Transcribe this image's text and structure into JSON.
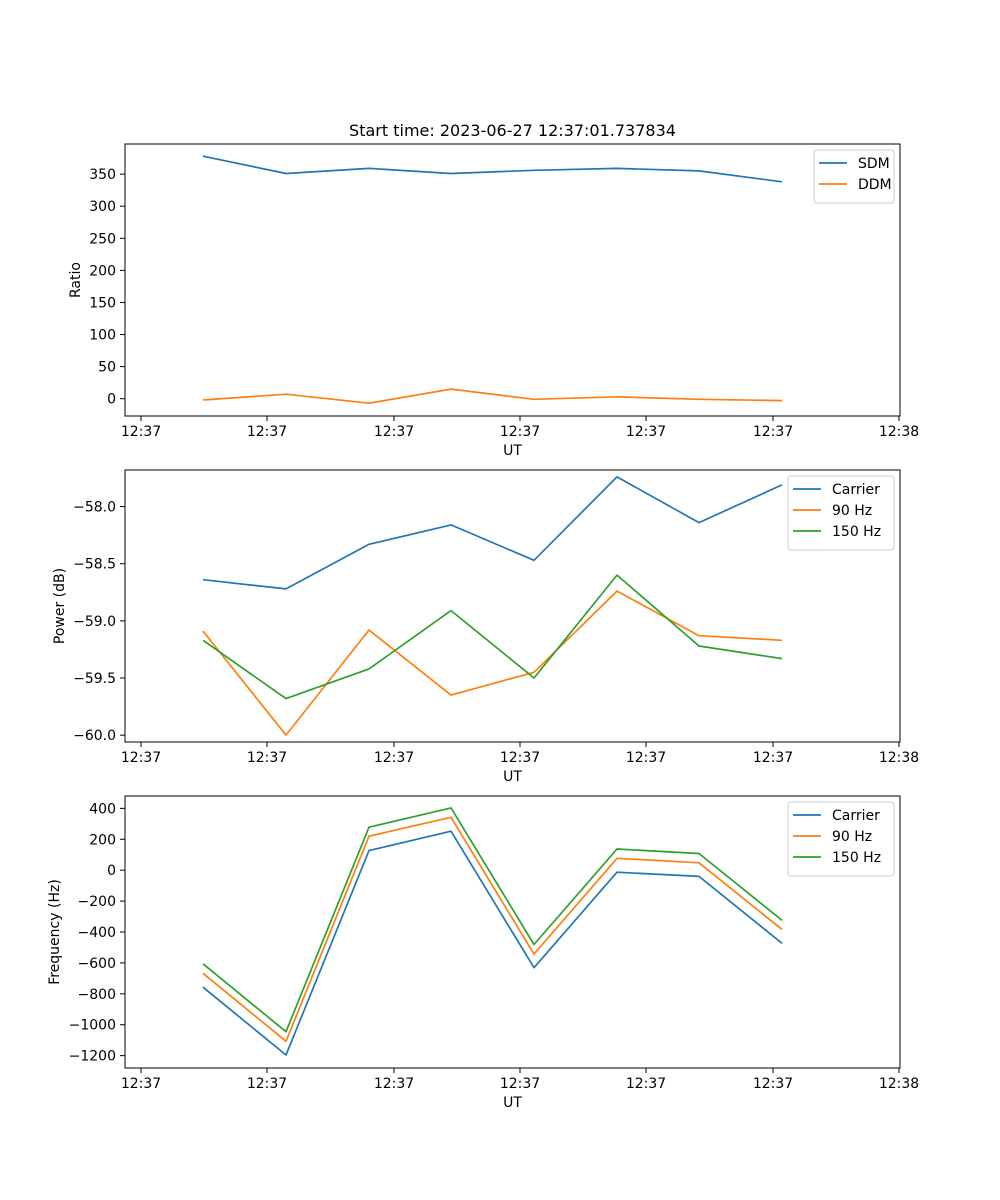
{
  "figure": {
    "title": "Start time: 2023-06-27 12:37:01.737834"
  },
  "chart_data": [
    {
      "type": "line",
      "title": "Start time: 2023-06-27 12:37:01.737834",
      "xlabel": "UT",
      "ylabel": "Ratio",
      "x_tick_labels": [
        "12:37",
        "12:37",
        "12:37",
        "12:37",
        "12:37",
        "12:37",
        "12:38"
      ],
      "y_ticks": [
        0,
        50,
        100,
        150,
        200,
        250,
        300,
        350
      ],
      "ylim": [
        -27,
        397
      ],
      "legend": "top-right",
      "grid": false,
      "series": [
        {
          "name": "SDM",
          "color": "#1f77b4",
          "values": [
            378,
            351,
            359,
            351,
            356,
            359,
            355,
            338
          ]
        },
        {
          "name": "DDM",
          "color": "#ff7f0e",
          "values": [
            -2,
            7,
            -7,
            15,
            -1,
            3,
            -1,
            -3
          ]
        }
      ]
    },
    {
      "type": "line",
      "title": "",
      "xlabel": "UT",
      "ylabel": "Power (dB)",
      "x_tick_labels": [
        "12:37",
        "12:37",
        "12:37",
        "12:37",
        "12:37",
        "12:37",
        "12:38"
      ],
      "y_ticks": [
        -60.0,
        -59.5,
        -59.0,
        -58.5,
        -58.0
      ],
      "y_tick_labels": [
        "−60.0",
        "−59.5",
        "−59.0",
        "−58.5",
        "−58.0"
      ],
      "ylim": [
        -60.06,
        -57.68
      ],
      "legend": "top-right",
      "grid": false,
      "series": [
        {
          "name": "Carrier",
          "color": "#1f77b4",
          "values": [
            -58.64,
            -58.72,
            -58.33,
            -58.16,
            -58.47,
            -57.74,
            -58.14,
            -57.81
          ]
        },
        {
          "name": "90 Hz",
          "color": "#ff7f0e",
          "values": [
            -59.09,
            -60.0,
            -59.08,
            -59.65,
            -59.45,
            -58.74,
            -59.13,
            -59.17
          ]
        },
        {
          "name": "150 Hz",
          "color": "#2ca02c",
          "values": [
            -59.17,
            -59.68,
            -59.42,
            -58.91,
            -59.5,
            -58.6,
            -59.22,
            -59.33
          ]
        }
      ]
    },
    {
      "type": "line",
      "title": "",
      "xlabel": "UT",
      "ylabel": "Frequency (Hz)",
      "x_tick_labels": [
        "12:37",
        "12:37",
        "12:37",
        "12:37",
        "12:37",
        "12:37",
        "12:38"
      ],
      "y_ticks": [
        -1200,
        -1000,
        -800,
        -600,
        -400,
        -200,
        0,
        200,
        400
      ],
      "y_tick_labels": [
        "−1200",
        "−1000",
        "−800",
        "−600",
        "−400",
        "−200",
        "0",
        "200",
        "400"
      ],
      "ylim": [
        -1280,
        480
      ],
      "legend": "top-right",
      "grid": false,
      "series": [
        {
          "name": "Carrier",
          "color": "#1f77b4",
          "values": [
            -757,
            -1196,
            127,
            252,
            -631,
            -13,
            -40,
            -473
          ]
        },
        {
          "name": "90 Hz",
          "color": "#ff7f0e",
          "values": [
            -667,
            -1107,
            220,
            342,
            -543,
            77,
            48,
            -383
          ]
        },
        {
          "name": "150 Hz",
          "color": "#2ca02c",
          "values": [
            -606,
            -1045,
            278,
            403,
            -481,
            137,
            108,
            -324
          ]
        }
      ]
    }
  ]
}
